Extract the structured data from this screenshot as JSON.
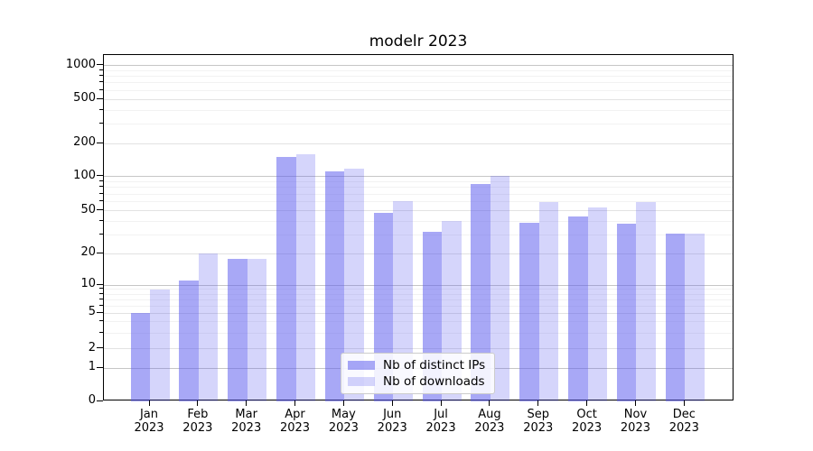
{
  "chart_data": {
    "type": "bar",
    "title": "modelr 2023",
    "xlabel": "",
    "ylabel": "",
    "yscale": "symlog",
    "ylim": [
      0,
      1300
    ],
    "grid": true,
    "legend_position": "lower center (inside plot)",
    "categories": [
      {
        "month": "Jan",
        "year": "2023"
      },
      {
        "month": "Feb",
        "year": "2023"
      },
      {
        "month": "Mar",
        "year": "2023"
      },
      {
        "month": "Apr",
        "year": "2023"
      },
      {
        "month": "May",
        "year": "2023"
      },
      {
        "month": "Jun",
        "year": "2023"
      },
      {
        "month": "Jul",
        "year": "2023"
      },
      {
        "month": "Aug",
        "year": "2023"
      },
      {
        "month": "Sep",
        "year": "2023"
      },
      {
        "month": "Oct",
        "year": "2023"
      },
      {
        "month": "Nov",
        "year": "2023"
      },
      {
        "month": "Dec",
        "year": "2023"
      }
    ],
    "series": [
      {
        "name": "Nb of distinct IPs",
        "color": "rgba(88,88,238,0.52)",
        "values": [
          5,
          11,
          18,
          150,
          112,
          48,
          32,
          86,
          39,
          44,
          38,
          31
        ]
      },
      {
        "name": "Nb of downloads",
        "color": "rgba(88,88,238,0.25)",
        "values": [
          9,
          20,
          18,
          160,
          119,
          61,
          40,
          101,
          60,
          53,
          60,
          31
        ]
      }
    ],
    "y_ticks": [
      {
        "value": 0,
        "label": "0"
      },
      {
        "value": 1,
        "label": "1"
      },
      {
        "value": 2,
        "label": "2"
      },
      {
        "value": 5,
        "label": "5"
      },
      {
        "value": 10,
        "label": "10"
      },
      {
        "value": 20,
        "label": "20"
      },
      {
        "value": 50,
        "label": "50"
      },
      {
        "value": 100,
        "label": "100"
      },
      {
        "value": 200,
        "label": "200"
      },
      {
        "value": 500,
        "label": "500"
      },
      {
        "value": 1000,
        "label": "1000"
      }
    ]
  },
  "colors": {
    "grid_major": "#c6c6c6",
    "grid_labeled": "#e2e2e2",
    "grid_minor": "#f2f2f2",
    "axis": "#000000",
    "background": "#ffffff"
  }
}
